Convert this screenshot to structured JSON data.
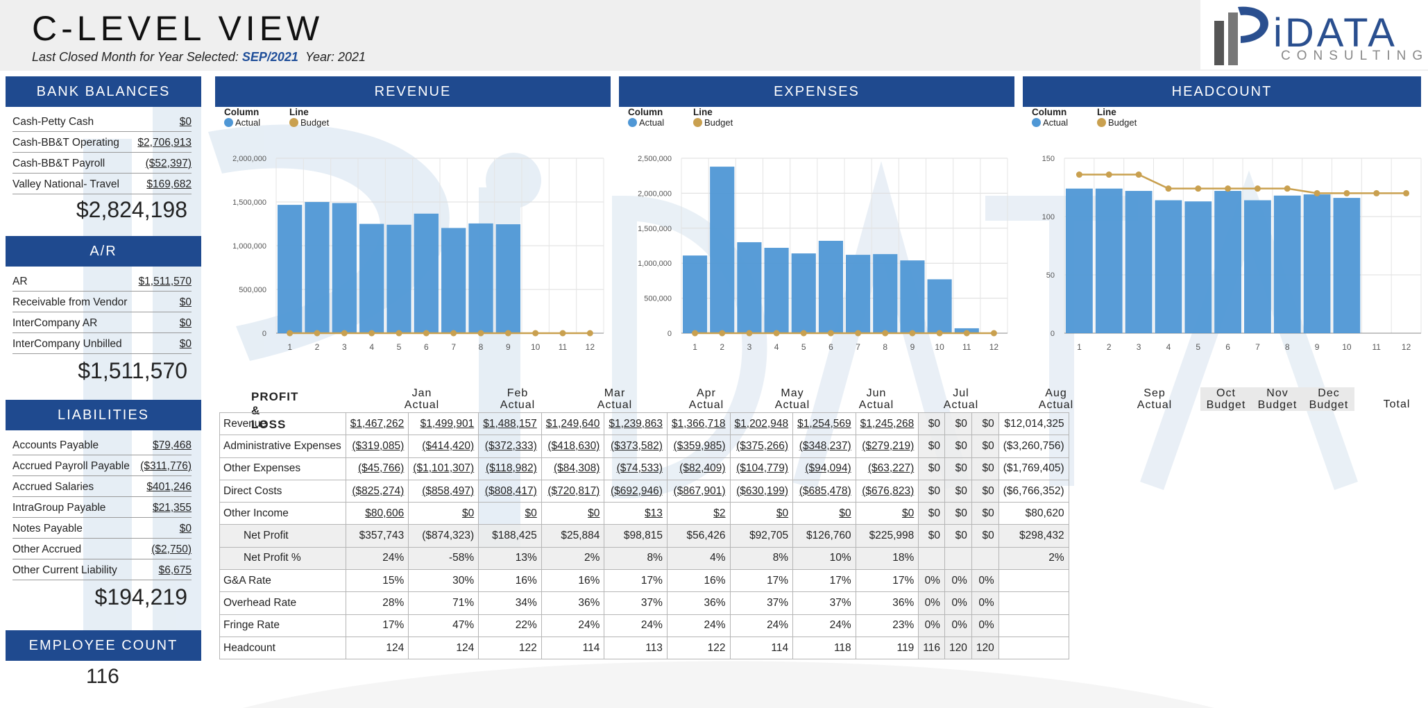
{
  "header": {
    "title": "C-LEVEL VIEW",
    "subtitle_prefix": "Last Closed Month for Year Selected:",
    "month_value": "SEP/2021",
    "year_label": "Year: 2021",
    "logo_text": "iDATA",
    "logo_sub": "CONSULTING"
  },
  "colors": {
    "navy": "#1f4a8f",
    "actual": "#4f97d5",
    "budget": "#c9a04f"
  },
  "bank": {
    "title": "BANK BALANCES",
    "rows": [
      {
        "label": "Cash-Petty Cash",
        "value": "$0"
      },
      {
        "label": "Cash-BB&T Operating",
        "value": "$2,706,913"
      },
      {
        "label": "Cash-BB&T Payroll",
        "value": "($52,397)"
      },
      {
        "label": "Valley National- Travel",
        "value": "$169,682"
      }
    ],
    "total": "$2,824,198"
  },
  "ar": {
    "title": "A/R",
    "rows": [
      {
        "label": "AR",
        "value": "$1,511,570"
      },
      {
        "label": "Receivable from Vendor",
        "value": "$0"
      },
      {
        "label": "InterCompany AR",
        "value": "$0"
      },
      {
        "label": "InterCompany Unbilled",
        "value": "$0"
      }
    ],
    "total": "$1,511,570"
  },
  "liabilities": {
    "title": "LIABILITIES",
    "rows": [
      {
        "label": "Accounts Payable",
        "value": "$79,468"
      },
      {
        "label": "Accrued Payroll Payable",
        "value": "($311,776)"
      },
      {
        "label": "Accrued Salaries",
        "value": "$401,246"
      },
      {
        "label": "IntraGroup Payable",
        "value": "$21,355"
      },
      {
        "label": "Notes Payable",
        "value": "$0"
      },
      {
        "label": "Other Accrued",
        "value": "($2,750)"
      },
      {
        "label": "Other Current Liability",
        "value": "$6,675"
      }
    ],
    "total": "$194,219"
  },
  "employee": {
    "title": "EMPLOYEE COUNT",
    "value": "116"
  },
  "legend": {
    "column": "Column",
    "line": "Line",
    "actual": "Actual",
    "budget": "Budget"
  },
  "chart_data": [
    {
      "type": "bar",
      "title": "REVENUE",
      "categories": [
        "1",
        "2",
        "3",
        "4",
        "5",
        "6",
        "7",
        "8",
        "9",
        "10",
        "11",
        "12"
      ],
      "ylim": [
        0,
        2000000
      ],
      "yticks": [
        "0",
        "500,000",
        "1,000,000",
        "1,500,000",
        "2,000,000"
      ],
      "series": [
        {
          "name": "Actual",
          "kind": "column",
          "values": [
            1467262,
            1499901,
            1488157,
            1249640,
            1239863,
            1366718,
            1202948,
            1254569,
            1245268,
            0,
            0,
            0
          ]
        },
        {
          "name": "Budget",
          "kind": "line",
          "values": [
            0,
            0,
            0,
            0,
            0,
            0,
            0,
            0,
            0,
            0,
            0,
            0
          ]
        }
      ]
    },
    {
      "type": "bar",
      "title": "EXPENSES",
      "categories": [
        "1",
        "2",
        "3",
        "4",
        "5",
        "6",
        "7",
        "8",
        "9",
        "10",
        "11",
        "12"
      ],
      "ylim": [
        0,
        2500000
      ],
      "yticks": [
        "0",
        "500,000",
        "1,000,000",
        "1,500,000",
        "2,000,000",
        "2,500,000"
      ],
      "series": [
        {
          "name": "Actual",
          "kind": "column",
          "values": [
            1110000,
            2380000,
            1300000,
            1220000,
            1140000,
            1320000,
            1120000,
            1130000,
            1040000,
            770000,
            70000,
            0
          ]
        },
        {
          "name": "Budget",
          "kind": "line",
          "values": [
            0,
            0,
            0,
            0,
            0,
            0,
            0,
            0,
            0,
            0,
            0,
            0
          ]
        }
      ]
    },
    {
      "type": "bar",
      "title": "HEADCOUNT",
      "categories": [
        "1",
        "2",
        "3",
        "4",
        "5",
        "6",
        "7",
        "8",
        "9",
        "10",
        "11",
        "12"
      ],
      "ylim": [
        0,
        150
      ],
      "yticks": [
        "0",
        "50",
        "100",
        "150"
      ],
      "series": [
        {
          "name": "Actual",
          "kind": "column",
          "values": [
            124,
            124,
            122,
            114,
            113,
            122,
            114,
            118,
            119,
            116,
            0,
            0
          ]
        },
        {
          "name": "Budget",
          "kind": "line",
          "values": [
            136,
            136,
            136,
            124,
            124,
            124,
            124,
            124,
            120,
            120,
            120,
            120
          ]
        }
      ]
    }
  ],
  "pl": {
    "title": "PROFIT & LOSS",
    "months": [
      {
        "m": "Jan",
        "t": "Actual"
      },
      {
        "m": "Feb",
        "t": "Actual"
      },
      {
        "m": "Mar",
        "t": "Actual"
      },
      {
        "m": "Apr",
        "t": "Actual"
      },
      {
        "m": "May",
        "t": "Actual"
      },
      {
        "m": "Jun",
        "t": "Actual"
      },
      {
        "m": "Jul",
        "t": "Actual"
      },
      {
        "m": "Aug",
        "t": "Actual"
      },
      {
        "m": "Sep",
        "t": "Actual"
      },
      {
        "m": "Oct",
        "t": "Budget"
      },
      {
        "m": "Nov",
        "t": "Budget"
      },
      {
        "m": "Dec",
        "t": "Budget"
      }
    ],
    "total_label": "Total",
    "rows": [
      {
        "label": "Revenue",
        "u": true,
        "vals": [
          "$1,467,262",
          "$1,499,901",
          "$1,488,157",
          "$1,249,640",
          "$1,239,863",
          "$1,366,718",
          "$1,202,948",
          "$1,254,569",
          "$1,245,268",
          "$0",
          "$0",
          "$0",
          "$12,014,325"
        ]
      },
      {
        "label": "Administrative Expenses",
        "u": true,
        "vals": [
          "($319,085)",
          "($414,420)",
          "($372,333)",
          "($418,630)",
          "($373,582)",
          "($359,985)",
          "($375,266)",
          "($348,237)",
          "($279,219)",
          "$0",
          "$0",
          "$0",
          "($3,260,756)"
        ]
      },
      {
        "label": "Other Expenses",
        "u": true,
        "vals": [
          "($45,766)",
          "($1,101,307)",
          "($118,982)",
          "($84,308)",
          "($74,533)",
          "($82,409)",
          "($104,779)",
          "($94,094)",
          "($63,227)",
          "$0",
          "$0",
          "$0",
          "($1,769,405)"
        ]
      },
      {
        "label": "Direct Costs",
        "u": true,
        "vals": [
          "($825,274)",
          "($858,497)",
          "($808,417)",
          "($720,817)",
          "($692,946)",
          "($867,901)",
          "($630,199)",
          "($685,478)",
          "($676,823)",
          "$0",
          "$0",
          "$0",
          "($6,766,352)"
        ]
      },
      {
        "label": "Other Income",
        "u": true,
        "vals": [
          "$80,606",
          "$0",
          "$0",
          "$0",
          "$13",
          "$2",
          "$0",
          "$0",
          "$0",
          "$0",
          "$0",
          "$0",
          "$80,620"
        ]
      },
      {
        "label": "Net Profit",
        "ind": true,
        "shade": true,
        "vals": [
          "$357,743",
          "($874,323)",
          "$188,425",
          "$25,884",
          "$98,815",
          "$56,426",
          "$92,705",
          "$126,760",
          "$225,998",
          "$0",
          "$0",
          "$0",
          "$298,432"
        ]
      },
      {
        "label": "Net Profit %",
        "ind": true,
        "shade": true,
        "vals": [
          "24%",
          "-58%",
          "13%",
          "2%",
          "8%",
          "4%",
          "8%",
          "10%",
          "18%",
          "",
          "",
          "",
          "2%"
        ]
      },
      {
        "label": "G&A Rate",
        "vals": [
          "15%",
          "30%",
          "16%",
          "16%",
          "17%",
          "16%",
          "17%",
          "17%",
          "17%",
          "0%",
          "0%",
          "0%",
          ""
        ]
      },
      {
        "label": "Overhead Rate",
        "vals": [
          "28%",
          "71%",
          "34%",
          "36%",
          "37%",
          "36%",
          "37%",
          "37%",
          "36%",
          "0%",
          "0%",
          "0%",
          ""
        ]
      },
      {
        "label": "Fringe Rate",
        "vals": [
          "17%",
          "47%",
          "22%",
          "24%",
          "24%",
          "24%",
          "24%",
          "24%",
          "23%",
          "0%",
          "0%",
          "0%",
          ""
        ]
      },
      {
        "label": "Headcount",
        "vals": [
          "124",
          "124",
          "122",
          "114",
          "113",
          "122",
          "114",
          "118",
          "119",
          "116",
          "120",
          "120",
          ""
        ]
      }
    ]
  }
}
